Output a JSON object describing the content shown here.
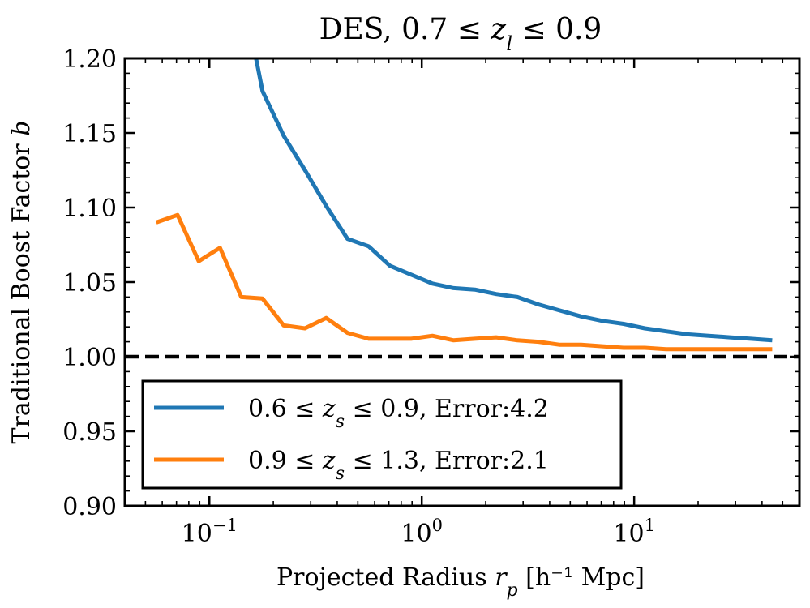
{
  "chart_data": {
    "type": "line",
    "title": {
      "pre": "DES, 0.7 ≤ ",
      "var": "z",
      "sub": "l",
      "post": " ≤ 0.9"
    },
    "xlabel": {
      "pre": "Projected Radius ",
      "var": "r",
      "sub": "p",
      "post": " [h⁻¹ Mpc]"
    },
    "ylabel": {
      "pre": "Traditional Boost Factor ",
      "var": "b"
    },
    "xscale": "log",
    "xlim": [
      0.04,
      60
    ],
    "ylim": [
      0.9,
      1.2
    ],
    "yticks": [
      "0.90",
      "0.95",
      "1.00",
      "1.05",
      "1.10",
      "1.15",
      "1.20"
    ],
    "xticks": [
      {
        "value": 0.1,
        "base": "10",
        "exp": "−1"
      },
      {
        "value": 1,
        "base": "10",
        "exp": "0"
      },
      {
        "value": 10,
        "base": "10",
        "exp": "1"
      }
    ],
    "reference_line": {
      "y": 1.0,
      "style": "dashed",
      "color": "#000000"
    },
    "grid": false,
    "legend_position": "lower-left",
    "series": [
      {
        "name": {
          "pre": "0.6 ≤ ",
          "var": "z",
          "sub": "s",
          "post": " ≤ 0.9, Error:4.2"
        },
        "color": "#1f77b4",
        "x": [
          0.158,
          0.178,
          0.224,
          0.282,
          0.355,
          0.447,
          0.562,
          0.708,
          0.891,
          1.122,
          1.413,
          1.778,
          2.239,
          2.818,
          3.548,
          4.467,
          5.623,
          7.079,
          8.913,
          11.22,
          14.13,
          17.78,
          22.39,
          28.18,
          35.48,
          44.67
        ],
        "y": [
          1.215,
          1.178,
          1.148,
          1.125,
          1.101,
          1.079,
          1.074,
          1.061,
          1.055,
          1.049,
          1.046,
          1.045,
          1.042,
          1.04,
          1.035,
          1.031,
          1.027,
          1.024,
          1.022,
          1.019,
          1.017,
          1.015,
          1.014,
          1.013,
          1.012,
          1.011
        ]
      },
      {
        "name": {
          "pre": "0.9 ≤ ",
          "var": "z",
          "sub": "s",
          "post": " ≤ 1.3, Error:2.1"
        },
        "color": "#ff7f0e",
        "x": [
          0.0562,
          0.0708,
          0.0891,
          0.1122,
          0.1413,
          0.1778,
          0.2239,
          0.2818,
          0.3548,
          0.4467,
          0.5623,
          0.7079,
          0.8913,
          1.122,
          1.413,
          1.778,
          2.239,
          2.818,
          3.548,
          4.467,
          5.623,
          7.079,
          8.913,
          11.22,
          14.13,
          17.78,
          22.39,
          28.18,
          35.48,
          44.67
        ],
        "y": [
          1.09,
          1.095,
          1.064,
          1.073,
          1.04,
          1.039,
          1.021,
          1.019,
          1.026,
          1.016,
          1.012,
          1.012,
          1.012,
          1.014,
          1.011,
          1.012,
          1.013,
          1.011,
          1.01,
          1.008,
          1.008,
          1.007,
          1.006,
          1.006,
          1.005,
          1.005,
          1.005,
          1.005,
          1.005,
          1.005
        ]
      }
    ]
  }
}
